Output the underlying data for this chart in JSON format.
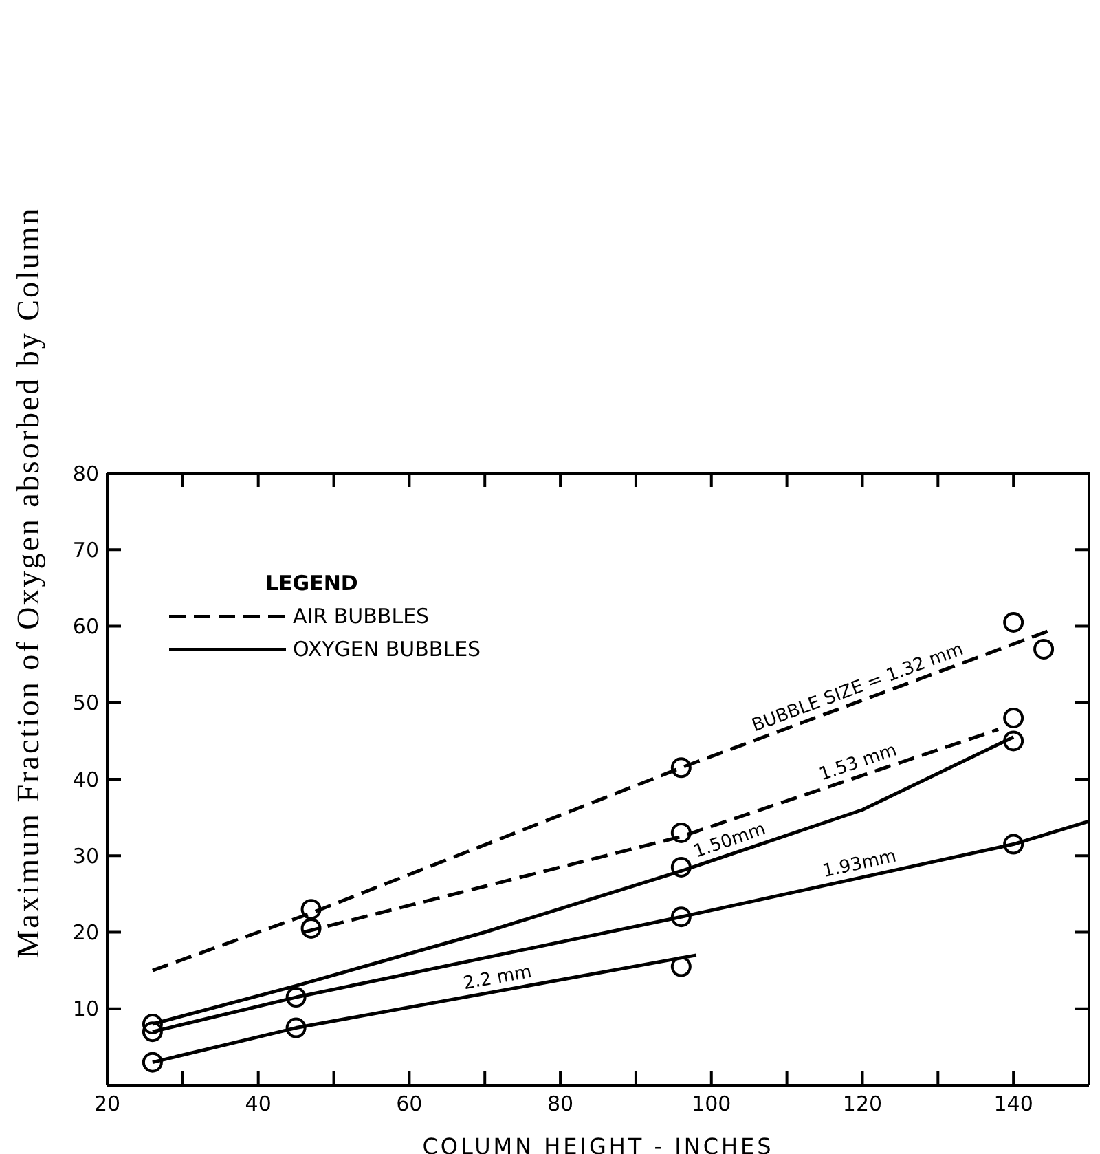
{
  "chart_data": {
    "type": "line",
    "xlabel": "COLUMN HEIGHT - INCHES",
    "ylabel": "Maximum Fraction of Oxygen absorbed by Column",
    "legend_title": "LEGEND",
    "annotations": [
      "AIR BUBBLES",
      "OXYGEN BUBBLES",
      {
        "text": "BUBBLE SIZE = 1.32 mm",
        "x": 120,
        "y": 50.3
      },
      {
        "text": "1.53 mm",
        "x": 120,
        "y": 40.5
      },
      {
        "text": "1.50mm",
        "x": 103,
        "y": 30.3
      },
      {
        "text": "1.93mm",
        "x": 120,
        "y": 27.2
      },
      {
        "text": "2.2 mm",
        "x": 72,
        "y": 12.3
      }
    ],
    "xlim": [
      20,
      150
    ],
    "xticks": [
      20,
      {
        "value": 30,
        "label": null
      },
      40,
      {
        "value": 50,
        "label": null
      },
      60,
      {
        "value": 70,
        "label": null
      },
      80,
      {
        "value": 90,
        "label": null
      },
      100,
      {
        "value": 110,
        "label": null
      },
      120,
      {
        "value": 130,
        "label": null
      },
      140
    ],
    "ylim": [
      0,
      80
    ],
    "yticks": [
      10,
      20,
      30,
      40,
      50,
      60,
      70,
      80
    ],
    "grid": false,
    "series": [
      {
        "type": "line",
        "line_style": "dashed",
        "marker": "none",
        "color": "#000000",
        "x": [
          26,
          47,
          96,
          145
        ],
        "values": [
          15,
          22.5,
          41.5,
          59.5
        ]
      },
      {
        "type": "line",
        "line_style": "dashed",
        "marker": "none",
        "color": "#000000",
        "x": [
          46,
          70,
          96,
          138
        ],
        "values": [
          20,
          26,
          32.5,
          46.5
        ]
      },
      {
        "type": "line",
        "line_style": "solid",
        "marker": "none",
        "color": "#000000",
        "x": [
          26,
          45,
          70,
          96,
          120,
          140
        ],
        "values": [
          8,
          13,
          20,
          28,
          36,
          45.5
        ]
      },
      {
        "type": "line",
        "line_style": "solid",
        "marker": "none",
        "color": "#000000",
        "x": [
          26,
          45,
          96,
          140,
          150
        ],
        "values": [
          7,
          11.5,
          22,
          31.5,
          34.5
        ]
      },
      {
        "type": "line",
        "line_style": "solid",
        "marker": "none",
        "color": "#000000",
        "x": [
          26,
          45,
          98
        ],
        "values": [
          3,
          7.5,
          17
        ]
      },
      {
        "type": "scatter",
        "marker": "circle",
        "color": "#000000",
        "x": [
          47,
          96,
          140,
          144,
          47,
          96,
          140,
          26,
          96,
          140,
          26,
          45,
          96,
          140,
          26,
          45,
          96
        ],
        "values": [
          23,
          41.5,
          60.5,
          57,
          20.5,
          33,
          48,
          8,
          28.5,
          45,
          7,
          11.5,
          22,
          31.5,
          3,
          7.5,
          15.5
        ]
      }
    ]
  }
}
